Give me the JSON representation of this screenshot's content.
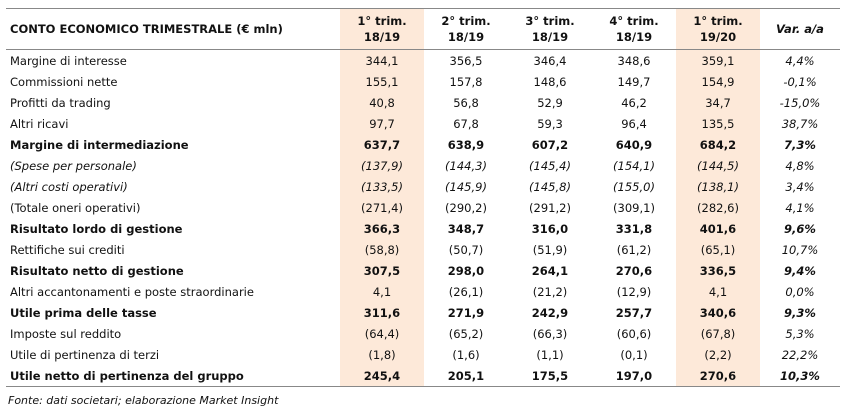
{
  "table": {
    "title": "CONTO ECONOMICO TRIMESTRALE (€ mln)",
    "columns": [
      [
        "1° trim.",
        "18/19"
      ],
      [
        "2° trim.",
        "18/19"
      ],
      [
        "3° trim.",
        "18/19"
      ],
      [
        "4° trim.",
        "18/19"
      ],
      [
        "1° trim.",
        "19/20"
      ],
      [
        "Var. a/a"
      ]
    ],
    "rows": [
      [
        "Margine di interesse",
        "344,1",
        "356,5",
        "346,4",
        "348,6",
        "359,1",
        "4,4%"
      ],
      [
        "Commissioni nette",
        "155,1",
        "157,8",
        "148,6",
        "149,7",
        "154,9",
        "-0,1%"
      ],
      [
        "Profitti da trading",
        "40,8",
        "56,8",
        "52,9",
        "46,2",
        "34,7",
        "-15,0%"
      ],
      [
        "Altri ricavi",
        "97,7",
        "67,8",
        "59,3",
        "96,4",
        "135,5",
        "38,7%"
      ],
      [
        "Margine di intermediazione",
        "637,7",
        "638,9",
        "607,2",
        "640,9",
        "684,2",
        "7,3%"
      ],
      [
        "(Spese per personale)",
        "(137,9)",
        "(144,3)",
        "(145,4)",
        "(154,1)",
        "(144,5)",
        "4,8%"
      ],
      [
        "(Altri costi operativi)",
        "(133,5)",
        "(145,9)",
        "(145,8)",
        "(155,0)",
        "(138,1)",
        "3,4%"
      ],
      [
        "(Totale oneri operativi)",
        "(271,4)",
        "(290,2)",
        "(291,2)",
        "(309,1)",
        "(282,6)",
        "4,1%"
      ],
      [
        "Risultato lordo di gestione",
        "366,3",
        "348,7",
        "316,0",
        "331,8",
        "401,6",
        "9,6%"
      ],
      [
        "Rettifiche sui crediti",
        "(58,8)",
        "(50,7)",
        "(51,9)",
        "(61,2)",
        "(65,1)",
        "10,7%"
      ],
      [
        "Risultato netto di gestione",
        "307,5",
        "298,0",
        "264,1",
        "270,6",
        "336,5",
        "9,4%"
      ],
      [
        "Altri accantonamenti e poste straordinarie",
        "4,1",
        "(26,1)",
        "(21,2)",
        "(12,9)",
        "4,1",
        "0,0%"
      ],
      [
        "Utile prima delle tasse",
        "311,6",
        "271,9",
        "242,9",
        "257,7",
        "340,6",
        "9,3%"
      ],
      [
        "Imposte sul reddito",
        "(64,4)",
        "(65,2)",
        "(66,3)",
        "(60,6)",
        "(67,8)",
        "5,3%"
      ],
      [
        "Utile di pertinenza di terzi",
        "(1,8)",
        "(1,6)",
        "(1,1)",
        "(0,1)",
        "(2,2)",
        "22,2%"
      ],
      [
        "Utile netto di pertinenza del gruppo",
        "245,4",
        "205,1",
        "175,5",
        "197,0",
        "270,6",
        "10,3%"
      ]
    ],
    "note": "Fonte: dati societari; elaborazione Market Insight"
  }
}
